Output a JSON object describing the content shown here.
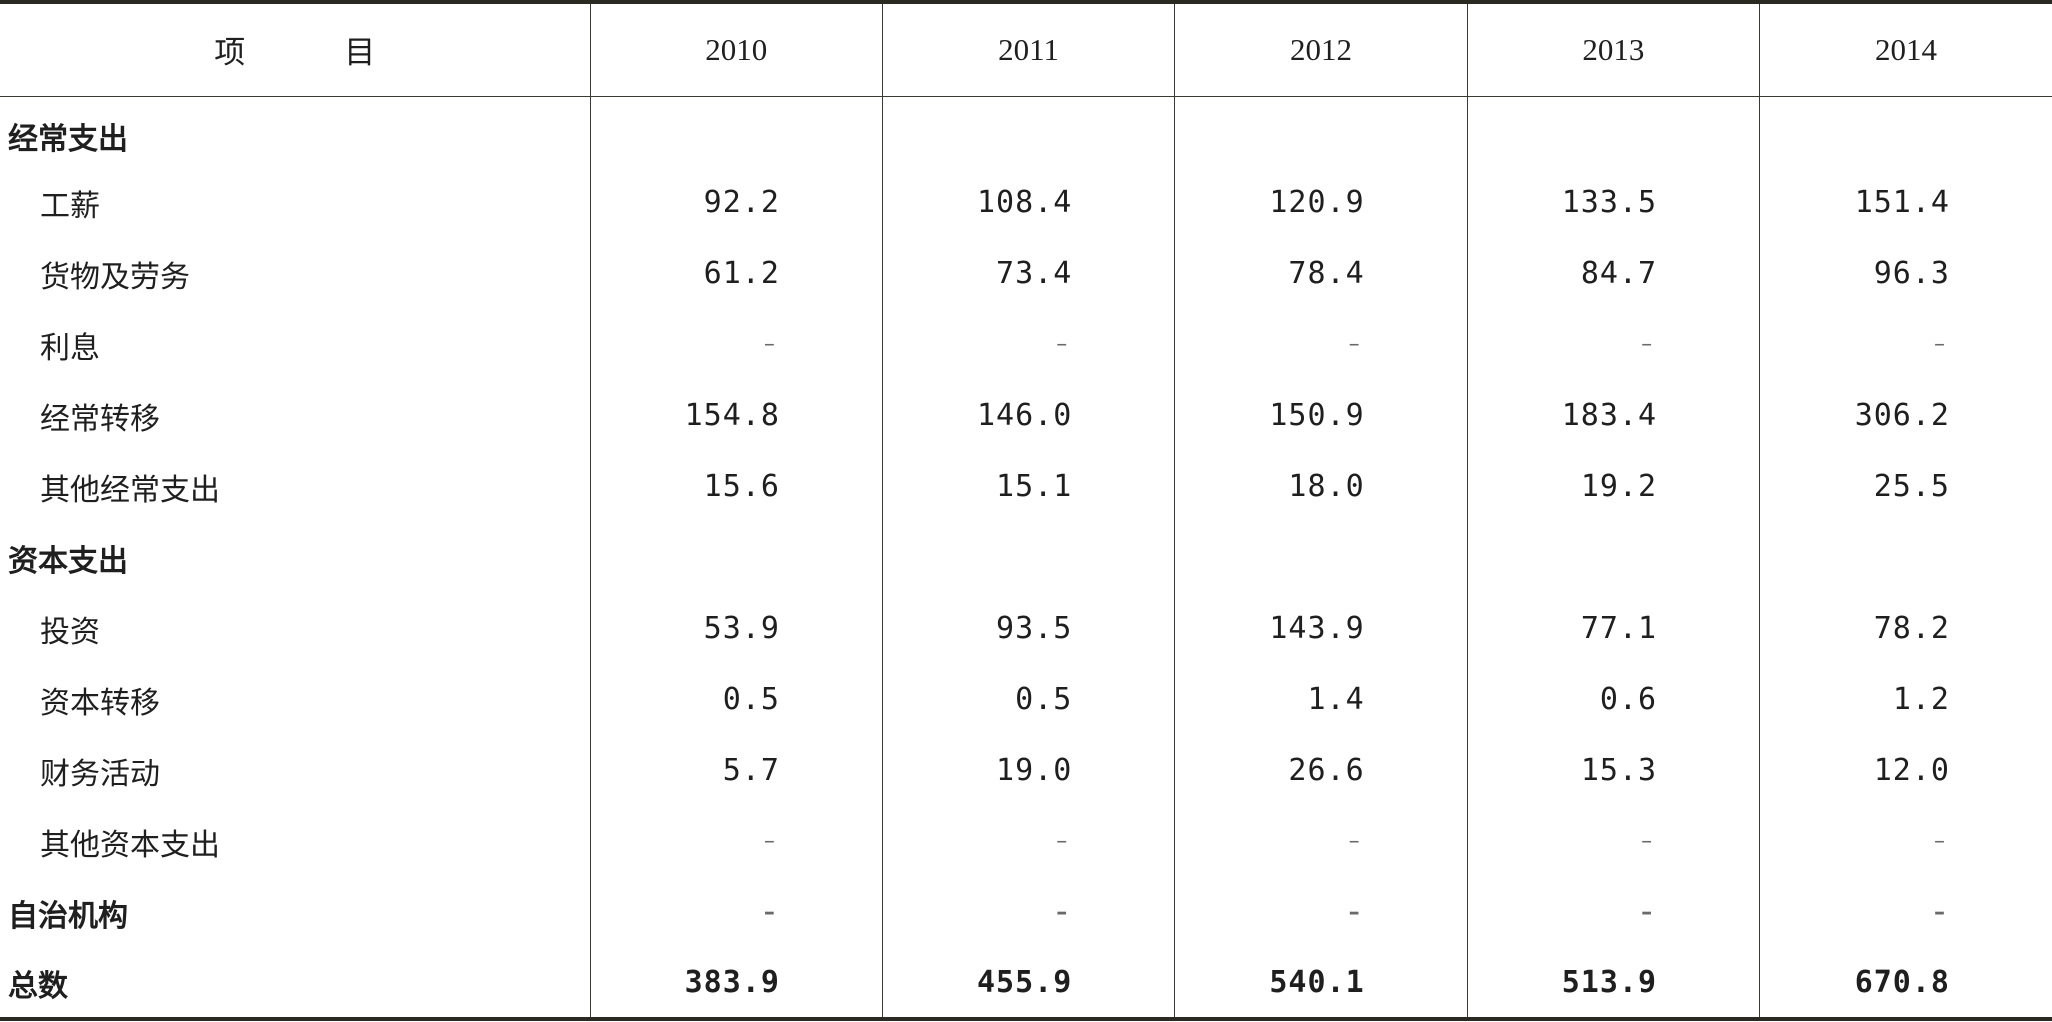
{
  "header": {
    "item_label": "项　目",
    "years": [
      "2010",
      "2011",
      "2012",
      "2013",
      "2014"
    ]
  },
  "rows": [
    {
      "label": "经常支出",
      "bold": true,
      "indent": false,
      "values": [
        "",
        "",
        "",
        "",
        ""
      ]
    },
    {
      "label": "工薪",
      "bold": false,
      "indent": true,
      "values": [
        "92.2",
        "108.4",
        "120.9",
        "133.5",
        "151.4"
      ]
    },
    {
      "label": "货物及劳务",
      "bold": false,
      "indent": true,
      "values": [
        "61.2",
        "73.4",
        "78.4",
        "84.7",
        "96.3"
      ]
    },
    {
      "label": "利息",
      "bold": false,
      "indent": true,
      "values": [
        "–",
        "–",
        "–",
        "–",
        "–"
      ]
    },
    {
      "label": "经常转移",
      "bold": false,
      "indent": true,
      "values": [
        "154.8",
        "146.0",
        "150.9",
        "183.4",
        "306.2"
      ]
    },
    {
      "label": "其他经常支出",
      "bold": false,
      "indent": true,
      "values": [
        "15.6",
        "15.1",
        "18.0",
        "19.2",
        "25.5"
      ]
    },
    {
      "label": "资本支出",
      "bold": true,
      "indent": false,
      "values": [
        "",
        "",
        "",
        "",
        ""
      ]
    },
    {
      "label": "投资",
      "bold": false,
      "indent": true,
      "values": [
        "53.9",
        "93.5",
        "143.9",
        "77.1",
        "78.2"
      ]
    },
    {
      "label": "资本转移",
      "bold": false,
      "indent": true,
      "values": [
        "0.5",
        "0.5",
        "1.4",
        "0.6",
        "1.2"
      ]
    },
    {
      "label": "财务活动",
      "bold": false,
      "indent": true,
      "values": [
        "5.7",
        "19.0",
        "26.6",
        "15.3",
        "12.0"
      ]
    },
    {
      "label": "其他资本支出",
      "bold": false,
      "indent": true,
      "values": [
        "–",
        "–",
        "–",
        "–",
        "–"
      ]
    },
    {
      "label": "自治机构",
      "bold": true,
      "indent": false,
      "values": [
        "–",
        "–",
        "–",
        "–",
        "–"
      ]
    },
    {
      "label": "总数",
      "bold": true,
      "indent": false,
      "total": true,
      "values": [
        "383.9",
        "455.9",
        "540.1",
        "513.9",
        "670.8"
      ]
    }
  ]
}
